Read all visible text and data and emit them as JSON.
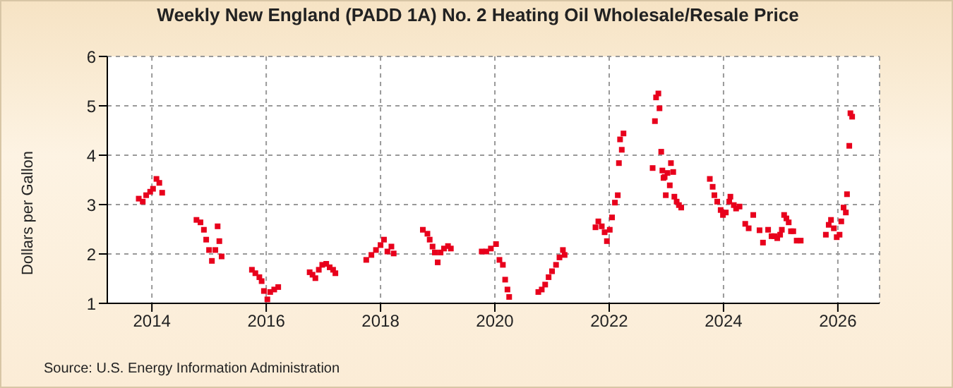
{
  "chart_data": {
    "type": "scatter",
    "title": "Weekly New England (PADD 1A) No. 2 Heating Oil Wholesale/Resale Price",
    "ylabel": "Dollars per Gallon",
    "annotations": [
      "Source: U.S. Energy Information Administration"
    ],
    "x": [
      2013.77,
      2013.84,
      2013.9,
      2013.97,
      2014.02,
      2014.08,
      2014.13,
      2014.18,
      2014.78,
      2014.85,
      2014.91,
      2014.95,
      2015.0,
      2015.05,
      2015.11,
      2015.15,
      2015.18,
      2015.22,
      2015.75,
      2015.81,
      2015.88,
      2015.92,
      2015.96,
      2016.02,
      2016.07,
      2016.14,
      2016.21,
      2016.76,
      2016.81,
      2016.86,
      2016.92,
      2016.98,
      2017.05,
      2017.11,
      2017.17,
      2017.21,
      2017.75,
      2017.84,
      2017.92,
      2018.0,
      2018.06,
      2018.12,
      2018.19,
      2018.23,
      2018.74,
      2018.82,
      2018.86,
      2018.91,
      2018.95,
      2019.0,
      2019.05,
      2019.11,
      2019.18,
      2019.23,
      2019.77,
      2019.85,
      2019.93,
      2020.02,
      2020.08,
      2020.14,
      2020.18,
      2020.22,
      2020.25,
      2020.76,
      2020.82,
      2020.88,
      2020.94,
      2021.0,
      2021.07,
      2021.13,
      2021.19,
      2021.22,
      2021.76,
      2021.81,
      2021.87,
      2021.92,
      2021.96,
      2022.01,
      2022.05,
      2022.1,
      2022.15,
      2022.17,
      2022.19,
      2022.22,
      2022.25,
      2022.76,
      2022.8,
      2022.82,
      2022.86,
      2022.88,
      2022.91,
      2022.93,
      2022.95,
      2022.97,
      2022.99,
      2023.02,
      2023.06,
      2023.08,
      2023.12,
      2023.14,
      2023.18,
      2023.22,
      2023.26,
      2023.76,
      2023.81,
      2023.84,
      2023.89,
      2023.95,
      2023.99,
      2024.04,
      2024.1,
      2024.12,
      2024.18,
      2024.22,
      2024.28,
      2024.38,
      2024.44,
      2024.52,
      2024.63,
      2024.69,
      2024.78,
      2024.84,
      2024.89,
      2024.94,
      2024.99,
      2025.02,
      2025.06,
      2025.1,
      2025.14,
      2025.18,
      2025.22,
      2025.28,
      2025.35,
      2025.79,
      2025.84,
      2025.88,
      2025.93,
      2025.98,
      2026.03,
      2026.06,
      2026.1,
      2026.14,
      2026.16,
      2026.2,
      2026.22,
      2026.25
    ],
    "series": [
      {
        "color": "#e8001c",
        "values": [
          3.12,
          3.06,
          3.19,
          3.26,
          3.32,
          3.52,
          3.44,
          3.24,
          2.69,
          2.64,
          2.49,
          2.29,
          2.08,
          1.86,
          2.08,
          2.56,
          2.26,
          1.95,
          1.68,
          1.61,
          1.53,
          1.45,
          1.25,
          1.08,
          1.23,
          1.28,
          1.33,
          1.63,
          1.58,
          1.51,
          1.68,
          1.78,
          1.8,
          1.73,
          1.68,
          1.61,
          1.88,
          1.98,
          2.08,
          2.18,
          2.29,
          2.05,
          2.15,
          2.01,
          2.49,
          2.41,
          2.29,
          2.15,
          2.03,
          1.83,
          2.03,
          2.11,
          2.16,
          2.11,
          2.05,
          2.05,
          2.11,
          2.2,
          1.88,
          1.78,
          1.48,
          1.28,
          1.13,
          1.23,
          1.28,
          1.38,
          1.53,
          1.65,
          1.78,
          1.93,
          2.08,
          1.98,
          2.54,
          2.66,
          2.56,
          2.44,
          2.26,
          2.49,
          2.74,
          3.04,
          3.19,
          3.84,
          4.32,
          4.11,
          4.44,
          3.74,
          4.69,
          5.17,
          5.25,
          4.95,
          4.07,
          3.69,
          3.54,
          3.56,
          3.19,
          3.64,
          3.39,
          3.84,
          3.66,
          3.16,
          3.06,
          2.99,
          2.94,
          3.52,
          3.36,
          3.19,
          3.06,
          2.89,
          2.79,
          2.84,
          3.06,
          3.16,
          2.99,
          2.92,
          2.96,
          2.61,
          2.52,
          2.79,
          2.48,
          2.23,
          2.49,
          2.36,
          2.36,
          2.32,
          2.39,
          2.49,
          2.79,
          2.72,
          2.64,
          2.46,
          2.46,
          2.27,
          2.27,
          2.39,
          2.59,
          2.69,
          2.52,
          2.34,
          2.39,
          2.66,
          2.94,
          2.84,
          3.21,
          4.19,
          4.85,
          4.78
        ]
      }
    ],
    "xlim": [
      2013.22,
      2026.73
    ],
    "xticks": [
      2014,
      2016,
      2018,
      2020,
      2022,
      2024,
      2026
    ],
    "ylim": [
      1,
      6
    ],
    "yticks": [
      1,
      2,
      3,
      4,
      5,
      6
    ],
    "grid": true,
    "marker": "square",
    "legend": false
  }
}
